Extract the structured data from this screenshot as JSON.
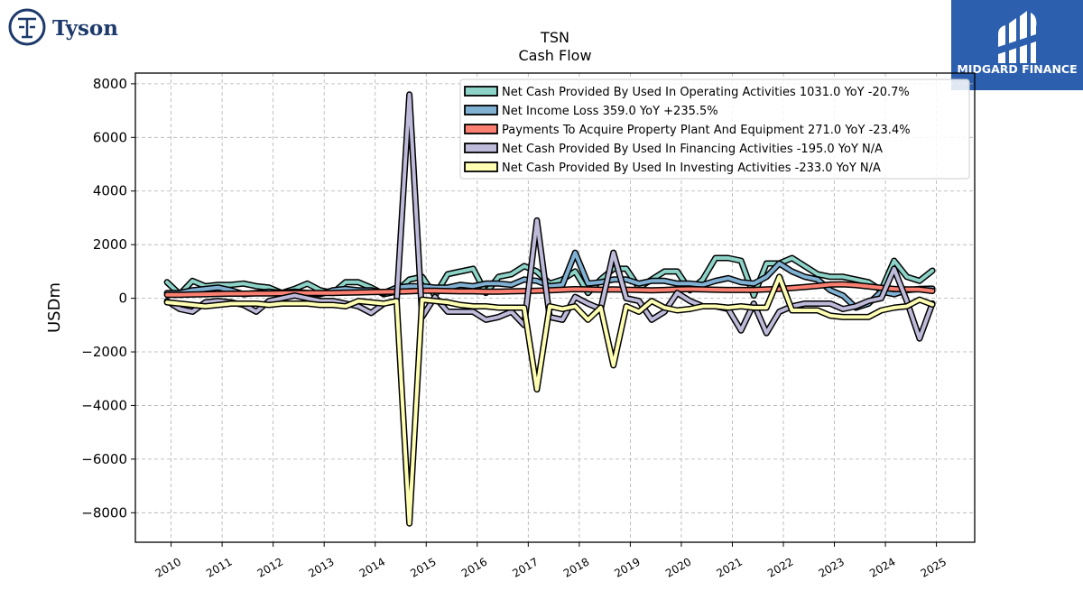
{
  "brand": {
    "company": "Tyson",
    "publisher": "MIDGARD FINANCE"
  },
  "chart_data": {
    "type": "line",
    "title": "TSN",
    "subtitle": "Cash Flow",
    "ylabel": "USDm",
    "xlabel": "",
    "ylim": [
      -9100,
      8400
    ],
    "xlim": [
      2009.3,
      2025.75
    ],
    "yticks": [
      -8000,
      -6000,
      -4000,
      -2000,
      0,
      2000,
      4000,
      6000,
      8000
    ],
    "ytick_labels": [
      "−8000",
      "−6000",
      "−4000",
      "−2000",
      "0",
      "2000",
      "4000",
      "6000",
      "8000"
    ],
    "xticks": [
      2010,
      2011,
      2012,
      2013,
      2014,
      2015,
      2016,
      2017,
      2018,
      2019,
      2020,
      2021,
      2022,
      2023,
      2024,
      2025
    ],
    "xtick_labels": [
      "2010",
      "2011",
      "2012",
      "2013",
      "2014",
      "2015",
      "2016",
      "2017",
      "2018",
      "2019",
      "2020",
      "2021",
      "2022",
      "2023",
      "2024",
      "2025"
    ],
    "grid": true,
    "legend_position": "top-right",
    "x": [
      2009.92,
      2010.17,
      2010.42,
      2010.67,
      2010.92,
      2011.17,
      2011.42,
      2011.67,
      2011.92,
      2012.17,
      2012.42,
      2012.67,
      2012.92,
      2013.17,
      2013.42,
      2013.67,
      2013.92,
      2014.17,
      2014.42,
      2014.67,
      2014.92,
      2015.17,
      2015.42,
      2015.67,
      2015.92,
      2016.17,
      2016.42,
      2016.67,
      2016.92,
      2017.17,
      2017.42,
      2017.67,
      2017.92,
      2018.17,
      2018.42,
      2018.67,
      2018.92,
      2019.17,
      2019.42,
      2019.67,
      2019.92,
      2020.17,
      2020.42,
      2020.67,
      2020.92,
      2021.17,
      2021.42,
      2021.67,
      2021.92,
      2022.17,
      2022.42,
      2022.67,
      2022.92,
      2023.17,
      2023.42,
      2023.67,
      2023.92,
      2024.17,
      2024.42,
      2024.67,
      2024.92
    ],
    "series": [
      {
        "name": "Net Cash Provided By Used In Operating Activities",
        "legend": "Net Cash Provided By Used In Operating Activities  1031.0 YoY -20.7%",
        "color": "#8dd3c7",
        "values": [
          600,
          150,
          650,
          450,
          500,
          500,
          550,
          450,
          400,
          200,
          350,
          550,
          300,
          200,
          600,
          600,
          400,
          150,
          250,
          700,
          800,
          100,
          900,
          1000,
          1100,
          200,
          800,
          900,
          1200,
          1000,
          550,
          700,
          1000,
          200,
          700,
          1100,
          1100,
          400,
          700,
          1000,
          1000,
          300,
          700,
          1500,
          1500,
          1400,
          100,
          1300,
          1300,
          1500,
          1200,
          900,
          800,
          800,
          700,
          600,
          300,
          1400,
          800,
          650,
          1031
        ]
      },
      {
        "name": "Net Income Loss",
        "legend": "Net Income Loss  359.0 YoY +235.5%",
        "color": "#80b1d3",
        "values": [
          200,
          200,
          300,
          350,
          400,
          300,
          150,
          200,
          250,
          200,
          250,
          200,
          150,
          300,
          350,
          300,
          300,
          200,
          400,
          450,
          450,
          400,
          400,
          500,
          450,
          550,
          550,
          500,
          700,
          650,
          450,
          500,
          1700,
          550,
          600,
          700,
          700,
          550,
          650,
          650,
          550,
          550,
          500,
          650,
          750,
          600,
          550,
          800,
          1300,
          1000,
          800,
          700,
          300,
          100,
          -350,
          -200,
          250,
          150,
          300,
          350,
          359
        ]
      },
      {
        "name": "Payments To Acquire Property Plant And Equipment",
        "legend": "Payments To Acquire Property Plant And Equipment  271.0 YoY -23.4%",
        "color": "#fb8072",
        "values": [
          130,
          130,
          140,
          150,
          160,
          170,
          170,
          180,
          180,
          190,
          200,
          200,
          200,
          200,
          210,
          220,
          230,
          240,
          250,
          260,
          280,
          280,
          270,
          260,
          260,
          250,
          250,
          260,
          270,
          280,
          300,
          320,
          340,
          330,
          320,
          330,
          320,
          310,
          300,
          310,
          330,
          340,
          330,
          320,
          310,
          310,
          310,
          330,
          350,
          380,
          420,
          460,
          510,
          520,
          490,
          440,
          390,
          350,
          330,
          330,
          271
        ]
      },
      {
        "name": "Net Cash Provided By Used In Financing Activities",
        "legend": "Net Cash Provided By Used In Financing Activities  -195.0 YoY N/A",
        "color": "#bebada",
        "values": [
          -100,
          -400,
          -500,
          -150,
          -100,
          -150,
          -250,
          -500,
          -100,
          0,
          100,
          0,
          -100,
          -100,
          -200,
          -300,
          -550,
          -200,
          -100,
          7600,
          -700,
          50,
          -500,
          -500,
          -500,
          -800,
          -700,
          -500,
          -1000,
          2900,
          -700,
          -800,
          50,
          -200,
          -400,
          1700,
          0,
          -100,
          -800,
          -500,
          200,
          -100,
          -300,
          -300,
          -400,
          -1200,
          -200,
          -1300,
          -500,
          -300,
          -200,
          -200,
          -200,
          -400,
          -300,
          -100,
          0,
          1100,
          -100,
          -1500,
          -195
        ]
      },
      {
        "name": "Net Cash Provided By Used In Investing Activities",
        "legend": "Net Cash Provided By Used In Investing Activities  -233.0 YoY N/A",
        "color": "#ffffb3",
        "values": [
          -150,
          -200,
          -250,
          -300,
          -250,
          -200,
          -200,
          -200,
          -250,
          -200,
          -200,
          -200,
          -250,
          -250,
          -300,
          -100,
          -150,
          -200,
          -100,
          -8400,
          -50,
          -100,
          -150,
          -250,
          -300,
          -300,
          -350,
          -350,
          -350,
          -3400,
          -300,
          -400,
          -300,
          -800,
          -350,
          -2500,
          -300,
          -500,
          -100,
          -350,
          -450,
          -400,
          -300,
          -300,
          -350,
          -300,
          -350,
          -350,
          800,
          -450,
          -450,
          -450,
          -650,
          -700,
          -700,
          -700,
          -450,
          -350,
          -300,
          -50,
          -233
        ]
      }
    ]
  }
}
